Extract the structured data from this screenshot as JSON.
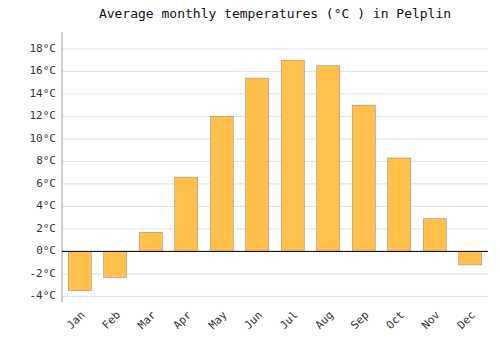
{
  "chart_data": {
    "type": "bar",
    "title": "Average monthly temperatures (°C ) in Pelplin",
    "categories": [
      "Jan",
      "Feb",
      "Mar",
      "Apr",
      "May",
      "Jun",
      "Jul",
      "Aug",
      "Sep",
      "Oct",
      "Nov",
      "Dec"
    ],
    "values": [
      -3.5,
      -2.3,
      1.7,
      6.6,
      12.0,
      15.4,
      17.0,
      16.5,
      13.0,
      8.3,
      2.9,
      -1.2
    ],
    "color": "#FFC04C",
    "ylim": [
      -4.5,
      19.5
    ],
    "yticks": [
      {
        "value": -4,
        "label": "-4°C"
      },
      {
        "value": -2,
        "label": "-2°C"
      },
      {
        "value": 0,
        "label": "0°C"
      },
      {
        "value": 2,
        "label": "2°C"
      },
      {
        "value": 4,
        "label": "4°C"
      },
      {
        "value": 6,
        "label": "6°C"
      },
      {
        "value": 8,
        "label": "8°C"
      },
      {
        "value": 10,
        "label": "10°C"
      },
      {
        "value": 12,
        "label": "12°C"
      },
      {
        "value": 14,
        "label": "14°C"
      },
      {
        "value": 16,
        "label": "16°C"
      },
      {
        "value": 18,
        "label": "18°C"
      }
    ],
    "grid": true
  }
}
